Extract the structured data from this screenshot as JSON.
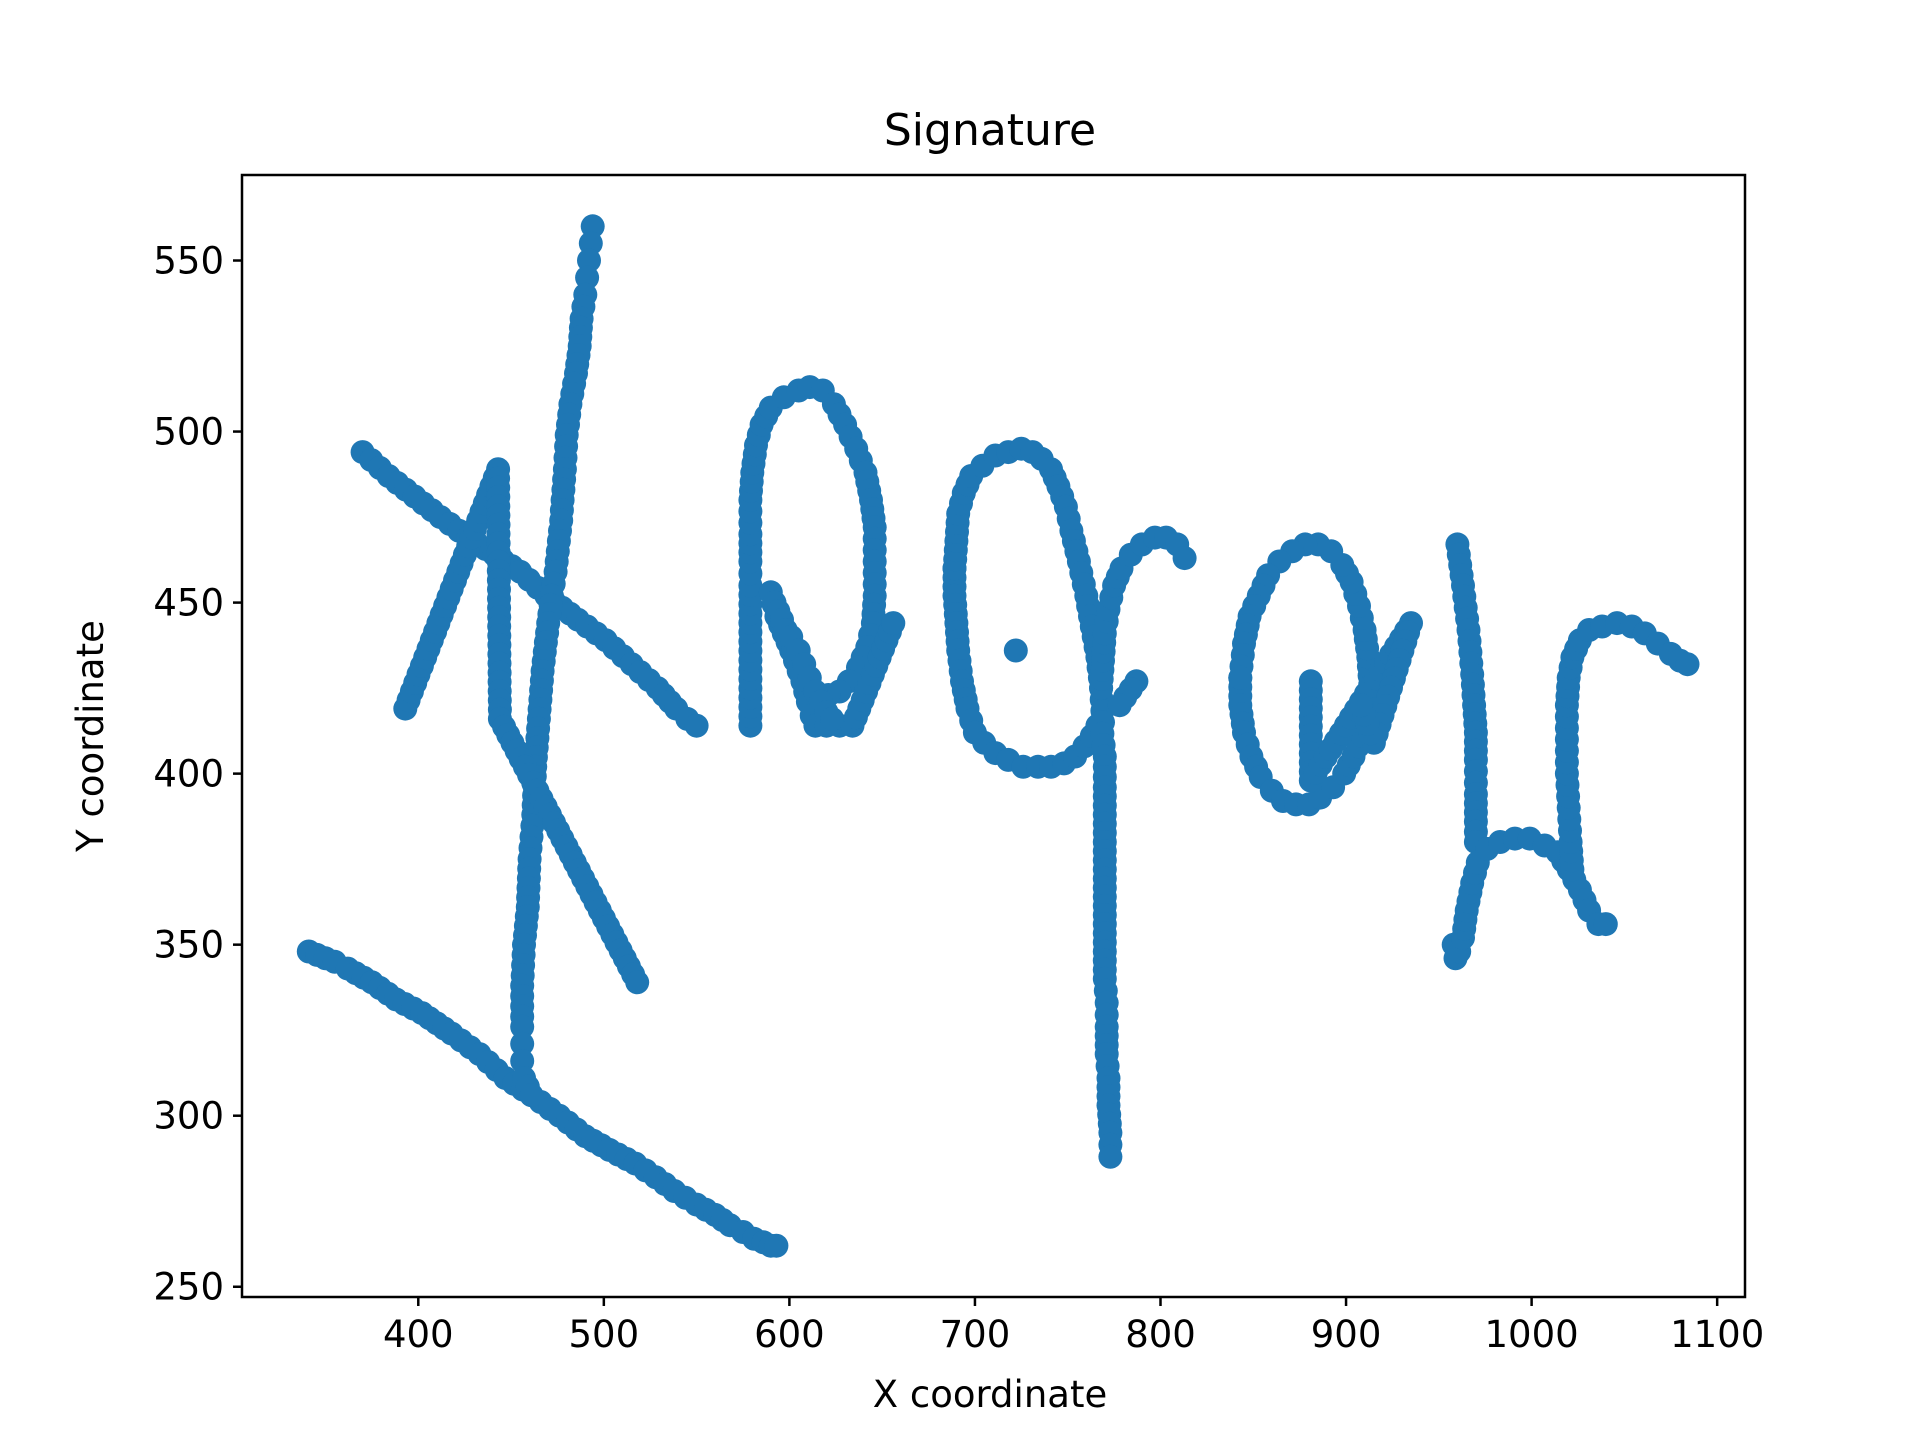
{
  "chart_data": {
    "type": "scatter",
    "title": "Signature",
    "xlabel": "X coordinate",
    "ylabel": "Y coordinate",
    "xlim": [
      305,
      1115
    ],
    "ylim": [
      247,
      575
    ],
    "xticks": [
      400,
      500,
      600,
      700,
      800,
      900,
      1000,
      1100
    ],
    "yticks": [
      250,
      300,
      350,
      400,
      450,
      500,
      550
    ],
    "grid": false,
    "legend": false,
    "marker_color": "#1f77b4",
    "strokes": [
      [
        [
          370,
          494
        ],
        [
          384,
          487
        ],
        [
          398,
          481
        ],
        [
          412,
          475
        ],
        [
          427,
          469
        ],
        [
          441,
          464
        ],
        [
          455,
          459
        ],
        [
          469,
          452
        ],
        [
          486,
          445
        ],
        [
          501,
          439
        ],
        [
          515,
          432
        ],
        [
          529,
          425
        ],
        [
          539,
          419
        ],
        [
          545,
          416
        ],
        [
          550,
          414
        ]
      ],
      [
        [
          341,
          348
        ],
        [
          350,
          346
        ],
        [
          355,
          345
        ],
        [
          362,
          343
        ],
        [
          375,
          339
        ],
        [
          388,
          334
        ],
        [
          402,
          330
        ],
        [
          418,
          324
        ],
        [
          433,
          318
        ],
        [
          447,
          311
        ],
        [
          461,
          306
        ],
        [
          476,
          300
        ],
        [
          490,
          294
        ],
        [
          503,
          290
        ],
        [
          517,
          286
        ],
        [
          528,
          282
        ],
        [
          538,
          278
        ],
        [
          550,
          274
        ],
        [
          560,
          271
        ],
        [
          568,
          268
        ],
        [
          575,
          266
        ],
        [
          581,
          264
        ],
        [
          586,
          263
        ],
        [
          590,
          262
        ],
        [
          593,
          262
        ]
      ],
      [
        [
          494,
          560
        ],
        [
          493,
          555
        ],
        [
          492,
          550
        ],
        [
          491,
          545
        ],
        [
          490,
          540
        ],
        [
          488,
          533
        ],
        [
          487,
          525
        ],
        [
          485,
          517
        ],
        [
          482,
          508
        ],
        [
          480,
          499
        ],
        [
          479,
          489
        ],
        [
          477,
          474
        ],
        [
          474,
          459
        ],
        [
          472,
          452
        ],
        [
          470,
          444
        ],
        [
          467,
          430
        ],
        [
          465,
          416
        ],
        [
          463,
          402
        ],
        [
          462,
          388
        ],
        [
          460,
          375
        ],
        [
          459,
          361
        ],
        [
          457,
          350
        ],
        [
          456,
          338
        ],
        [
          456,
          326
        ],
        [
          456,
          321
        ],
        [
          456,
          316
        ],
        [
          457,
          311
        ],
        [
          461,
          306
        ]
      ],
      [
        [
          393,
          419
        ],
        [
          443,
          489
        ],
        [
          444,
          416
        ],
        [
          518,
          339
        ]
      ],
      [
        [
          579,
          414
        ],
        [
          579,
          455
        ],
        [
          579,
          462
        ],
        [
          579,
          470
        ],
        [
          579,
          480
        ],
        [
          580,
          488
        ],
        [
          582,
          496
        ],
        [
          585,
          502
        ],
        [
          590,
          507
        ],
        [
          597,
          510
        ],
        [
          605,
          512
        ],
        [
          611,
          513
        ],
        [
          618,
          512
        ],
        [
          624,
          508
        ],
        [
          630,
          502
        ],
        [
          636,
          495
        ],
        [
          641,
          488
        ],
        [
          644,
          480
        ],
        [
          646,
          472
        ],
        [
          646,
          462
        ],
        [
          646,
          452
        ],
        [
          645,
          444
        ],
        [
          642,
          437
        ],
        [
          637,
          431
        ],
        [
          632,
          427
        ],
        [
          627,
          424
        ],
        [
          621,
          423
        ],
        [
          614,
          423
        ],
        [
          609,
          426
        ],
        [
          605,
          430
        ],
        [
          601,
          436
        ],
        [
          597,
          441
        ],
        [
          593,
          446
        ],
        [
          590,
          453
        ],
        [
          592,
          450
        ],
        [
          596,
          445
        ],
        [
          600,
          439
        ],
        [
          604,
          433
        ],
        [
          607,
          427
        ],
        [
          610,
          421
        ],
        [
          612,
          417
        ],
        [
          614,
          414
        ],
        [
          620,
          414
        ],
        [
          627,
          414
        ],
        [
          634,
          414
        ],
        [
          656,
          444
        ]
      ],
      [
        [
          601,
          440
        ],
        [
          605,
          436
        ],
        [
          608,
          432
        ],
        [
          611,
          428
        ],
        [
          614,
          424
        ],
        [
          617,
          421
        ],
        [
          620,
          418
        ],
        [
          623,
          416
        ]
      ],
      [
        [
          689,
          460
        ],
        [
          689,
          452
        ],
        [
          690,
          444
        ],
        [
          691,
          436
        ],
        [
          693,
          427
        ],
        [
          696,
          419
        ],
        [
          700,
          412
        ],
        [
          705,
          409
        ],
        [
          711,
          406
        ],
        [
          718,
          404
        ],
        [
          726,
          402
        ],
        [
          734,
          402
        ],
        [
          741,
          402
        ],
        [
          748,
          403
        ],
        [
          754,
          405
        ],
        [
          759,
          408
        ],
        [
          763,
          411
        ],
        [
          766,
          414
        ]
      ],
      [
        [
          689,
          460
        ],
        [
          690,
          468
        ],
        [
          691,
          476
        ],
        [
          694,
          482
        ],
        [
          698,
          487
        ],
        [
          704,
          490
        ],
        [
          711,
          493
        ],
        [
          718,
          494
        ],
        [
          725,
          495
        ],
        [
          731,
          494
        ],
        [
          736,
          492
        ],
        [
          741,
          489
        ],
        [
          745,
          484
        ],
        [
          749,
          478
        ],
        [
          752,
          471
        ],
        [
          756,
          462
        ],
        [
          760,
          452
        ],
        [
          763,
          443
        ],
        [
          766,
          434
        ],
        [
          768,
          425
        ],
        [
          769,
          415
        ]
      ],
      [
        [
          722,
          436
        ]
      ],
      [
        [
          768,
          415
        ],
        [
          770,
          405
        ],
        [
          770,
          396
        ],
        [
          770,
          388
        ],
        [
          770,
          380
        ],
        [
          770,
          372
        ],
        [
          770,
          364
        ],
        [
          770,
          356
        ],
        [
          770,
          348
        ],
        [
          770,
          340
        ],
        [
          771,
          333
        ],
        [
          771,
          326
        ],
        [
          771,
          318
        ],
        [
          772,
          311
        ],
        [
          772,
          303
        ],
        [
          773,
          295
        ],
        [
          773,
          288
        ]
      ],
      [
        [
          768,
          425
        ],
        [
          769,
          433
        ],
        [
          770,
          441
        ],
        [
          772,
          448
        ],
        [
          775,
          455
        ],
        [
          779,
          460
        ],
        [
          784,
          464
        ],
        [
          790,
          467
        ],
        [
          797,
          469
        ],
        [
          803,
          469
        ],
        [
          809,
          467
        ],
        [
          813,
          463
        ]
      ],
      [
        [
          787,
          427
        ],
        [
          778,
          420
        ]
      ],
      [
        [
          843,
          428
        ],
        [
          843,
          420
        ],
        [
          845,
          412
        ],
        [
          849,
          405
        ],
        [
          854,
          399
        ],
        [
          860,
          395
        ],
        [
          866,
          392
        ],
        [
          873,
          391
        ],
        [
          880,
          391
        ],
        [
          886,
          393
        ],
        [
          893,
          396
        ],
        [
          899,
          400
        ],
        [
          904,
          405
        ],
        [
          909,
          411
        ],
        [
          912,
          418
        ],
        [
          913,
          426
        ],
        [
          912,
          434
        ],
        [
          910,
          442
        ],
        [
          907,
          449
        ],
        [
          903,
          456
        ],
        [
          898,
          461
        ],
        [
          892,
          465
        ],
        [
          885,
          467
        ],
        [
          878,
          467
        ],
        [
          871,
          465
        ],
        [
          864,
          462
        ],
        [
          858,
          458
        ],
        [
          853,
          452
        ],
        [
          848,
          446
        ],
        [
          845,
          438
        ],
        [
          843,
          428
        ]
      ],
      [
        [
          881,
          427
        ],
        [
          881,
          398
        ],
        [
          935,
          444
        ],
        [
          915,
          409
        ],
        [
          908,
          420
        ]
      ],
      [
        [
          960,
          467
        ],
        [
          963,
          455
        ],
        [
          966,
          442
        ],
        [
          968,
          429
        ],
        [
          969,
          420
        ],
        [
          970,
          412
        ],
        [
          970,
          404
        ],
        [
          970,
          394
        ],
        [
          970,
          386
        ],
        [
          970,
          380
        ]
      ],
      [
        [
          958,
          350
        ],
        [
          959,
          346
        ],
        [
          961,
          348
        ],
        [
          963,
          352
        ],
        [
          965,
          360
        ],
        [
          968,
          368
        ],
        [
          971,
          374
        ],
        [
          976,
          378
        ],
        [
          983,
          380
        ],
        [
          991,
          381
        ],
        [
          999,
          381
        ],
        [
          1007,
          379
        ],
        [
          1014,
          377
        ],
        [
          1020,
          372
        ],
        [
          1026,
          366
        ],
        [
          1031,
          360
        ],
        [
          1036,
          356
        ],
        [
          1040,
          356
        ]
      ],
      [
        [
          1022,
          372
        ],
        [
          1021,
          380
        ],
        [
          1020,
          390
        ],
        [
          1019,
          400
        ],
        [
          1019,
          410
        ],
        [
          1019,
          420
        ],
        [
          1020,
          428
        ],
        [
          1022,
          434
        ],
        [
          1026,
          439
        ],
        [
          1031,
          442
        ],
        [
          1038,
          443
        ],
        [
          1046,
          444
        ],
        [
          1054,
          443
        ],
        [
          1061,
          441
        ],
        [
          1068,
          438
        ],
        [
          1075,
          435
        ],
        [
          1080,
          433
        ],
        [
          1084,
          432
        ]
      ]
    ]
  }
}
